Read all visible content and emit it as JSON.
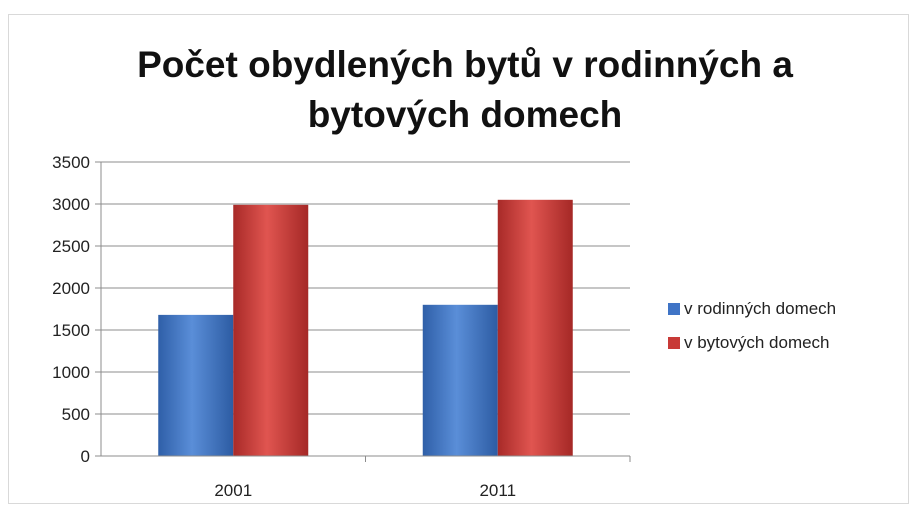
{
  "chart_data": {
    "type": "bar",
    "title_lines": [
      "Počet obydlených bytů v rodinných a",
      "bytových domech"
    ],
    "categories": [
      "2001",
      "2011"
    ],
    "series": [
      {
        "name": "v rodinných domech",
        "values": [
          1680,
          1800
        ],
        "color": "#3f74c6"
      },
      {
        "name": "v bytových domech",
        "values": [
          2990,
          3050
        ],
        "color": "#c83a37"
      }
    ],
    "ylim": [
      0,
      3500
    ],
    "yticks": [
      "0",
      "500",
      "1000",
      "1500",
      "2000",
      "2500",
      "3000",
      "3500"
    ],
    "grid": true,
    "legend": "right"
  }
}
